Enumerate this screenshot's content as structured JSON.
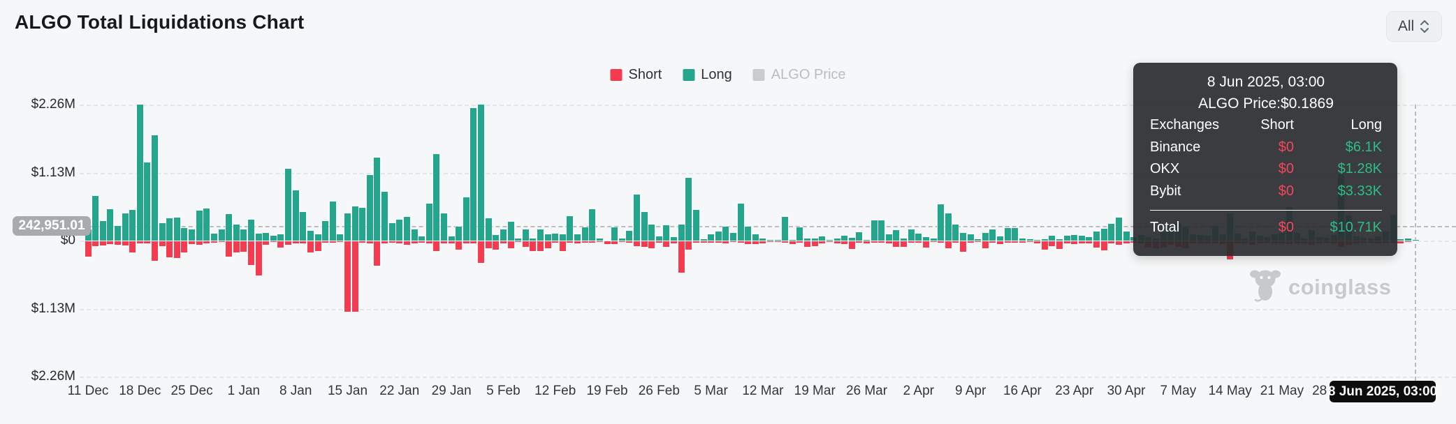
{
  "header": {
    "title": "ALGO Total Liquidations Chart",
    "range_selector": {
      "value": "All"
    }
  },
  "legend": {
    "items": [
      {
        "label": "Short",
        "color": "#f43b4f",
        "active": true
      },
      {
        "label": "Long",
        "color": "#23a68c",
        "active": true
      },
      {
        "label": "ALGO Price",
        "color": "#c9ccce",
        "active": false
      }
    ]
  },
  "crosshair": {
    "y_value_label": "242,951.01",
    "x_value_label": "8 Jun 2025, 03:00"
  },
  "tooltip": {
    "date": "8 Jun 2025, 03:00",
    "price_line": "ALGO Price:$0.1869",
    "columns": [
      "Exchanges",
      "Short",
      "Long"
    ],
    "rows": [
      {
        "name": "Binance",
        "short": "$0",
        "long": "$6.1K"
      },
      {
        "name": "OKX",
        "short": "$0",
        "long": "$1.28K"
      },
      {
        "name": "Bybit",
        "short": "$0",
        "long": "$3.33K"
      }
    ],
    "total": {
      "name": "Total",
      "short": "$0",
      "long": "$10.71K"
    }
  },
  "watermark": {
    "label": "coinglass"
  },
  "chart_data": {
    "type": "bar",
    "title": "ALGO Total Liquidations Chart",
    "unit": "USD liquidations per day (K = thousands)",
    "grid": "horizontal-dashed",
    "legend_position": "top-center",
    "y_axis": {
      "tick_labels": [
        "$2.26M",
        "$1.13M",
        "$0",
        "$1.13M",
        "$2.26M"
      ],
      "tick_values_k": [
        2260,
        1130,
        0,
        -1130,
        -2260
      ],
      "range_k": [
        -2500,
        2500
      ]
    },
    "x_axis": {
      "tick_labels": [
        "11 Dec",
        "18 Dec",
        "25 Dec",
        "1 Jan",
        "8 Jan",
        "15 Jan",
        "22 Jan",
        "29 Jan",
        "5 Feb",
        "12 Feb",
        "19 Feb",
        "26 Feb",
        "5 Mar",
        "12 Mar",
        "19 Mar",
        "26 Mar",
        "2 Apr",
        "9 Apr",
        "16 Apr",
        "23 Apr",
        "30 Apr",
        "7 May",
        "14 May",
        "21 May",
        "28 May"
      ],
      "start": "11 Dec",
      "end": "8 Jun 2025, 03:00",
      "points": 180
    },
    "hovered_point": {
      "date": "8 Jun 2025, 03:00",
      "algo_price": "$0.1869",
      "total_short_usd": 0,
      "total_long_usd": 10710,
      "crosshair_y_value": 242951.01,
      "exchanges": [
        {
          "name": "Binance",
          "short_usd": 0,
          "long_usd": 6100
        },
        {
          "name": "OKX",
          "short_usd": 0,
          "long_usd": 1280
        },
        {
          "name": "Bybit",
          "short_usd": 0,
          "long_usd": 3330
        }
      ]
    },
    "series": [
      {
        "name": "Long",
        "color": "#23a68c",
        "direction": "up",
        "values_k": [
          180,
          740,
          330,
          520,
          240,
          450,
          510,
          2260,
          1300,
          1750,
          290,
          370,
          380,
          210,
          180,
          500,
          530,
          120,
          180,
          440,
          270,
          180,
          350,
          120,
          130,
          80,
          110,
          1190,
          830,
          480,
          160,
          110,
          320,
          650,
          100,
          450,
          570,
          550,
          1090,
          1380,
          810,
          290,
          350,
          390,
          190,
          70,
          620,
          1440,
          450,
          70,
          230,
          720,
          2200,
          2260,
          370,
          90,
          190,
          310,
          40,
          190,
          40,
          190,
          100,
          120,
          100,
          400,
          100,
          220,
          520,
          40,
          0,
          220,
          40,
          160,
          770,
          480,
          270,
          70,
          260,
          60,
          270,
          1040,
          510,
          20,
          100,
          150,
          230,
          130,
          620,
          230,
          100,
          40,
          10,
          10,
          390,
          10,
          220,
          40,
          30,
          70,
          10,
          30,
          80,
          50,
          140,
          10,
          340,
          340,
          110,
          170,
          40,
          190,
          120,
          60,
          30,
          600,
          450,
          270,
          130,
          100,
          20,
          130,
          180,
          70,
          210,
          210,
          30,
          20,
          10,
          20,
          80,
          20,
          80,
          90,
          80,
          60,
          150,
          200,
          280,
          380,
          150,
          60,
          90,
          60,
          40,
          140,
          230,
          290,
          230,
          110,
          90,
          80,
          240,
          100,
          450,
          120,
          40,
          150,
          80,
          60,
          100,
          130,
          560,
          130,
          40,
          170,
          60,
          50,
          90,
          1100,
          420,
          70,
          50,
          40,
          70,
          150,
          430,
          20,
          30,
          11
        ]
      },
      {
        "name": "Short",
        "color": "#f43b4f",
        "direction": "down",
        "values_k": [
          260,
          80,
          70,
          50,
          60,
          70,
          190,
          40,
          40,
          330,
          80,
          270,
          280,
          190,
          50,
          60,
          40,
          20,
          10,
          250,
          180,
          170,
          390,
          570,
          60,
          10,
          100,
          60,
          40,
          40,
          180,
          160,
          20,
          20,
          10,
          1170,
          1170,
          20,
          40,
          400,
          40,
          20,
          40,
          60,
          30,
          20,
          30,
          160,
          30,
          30,
          140,
          30,
          30,
          360,
          120,
          140,
          40,
          120,
          10,
          90,
          160,
          160,
          120,
          20,
          160,
          20,
          30,
          20,
          20,
          10,
          50,
          50,
          10,
          20,
          80,
          90,
          120,
          20,
          90,
          30,
          520,
          140,
          20,
          20,
          20,
          20,
          30,
          10,
          20,
          50,
          50,
          30,
          10,
          10,
          20,
          50,
          20,
          90,
          80,
          30,
          10,
          40,
          50,
          130,
          20,
          40,
          20,
          20,
          40,
          90,
          90,
          20,
          20,
          110,
          10,
          20,
          120,
          20,
          170,
          20,
          10,
          120,
          20,
          50,
          20,
          20,
          20,
          10,
          40,
          140,
          80,
          130,
          30,
          50,
          30,
          40,
          100,
          150,
          40,
          60,
          40,
          20,
          30,
          100,
          120,
          100,
          60,
          90,
          120,
          30,
          40,
          40,
          30,
          50,
          300,
          30,
          40,
          60,
          30,
          20,
          40,
          40,
          50,
          40,
          30,
          60,
          30,
          20,
          30,
          90,
          60,
          30,
          20,
          20,
          30,
          20,
          20,
          40,
          10,
          0
        ]
      }
    ]
  }
}
